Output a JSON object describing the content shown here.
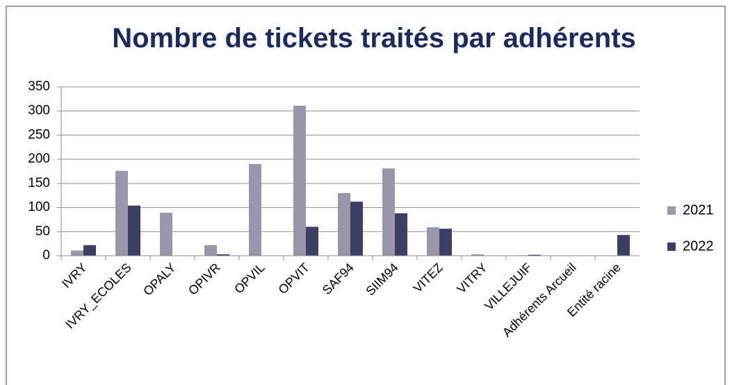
{
  "chart_data": {
    "type": "bar",
    "title": "Nombre de tickets traités par adhérents",
    "categories": [
      "IVRY",
      "IVRY_ECOLES",
      "OPALY",
      "OPIVR",
      "OPVIL",
      "OPVIT",
      "SAF94",
      "SIIM94",
      "VITEZ",
      "VITRY",
      "VILLEJUIF",
      "Adhérents Arcueil",
      "Entité racine"
    ],
    "series": [
      {
        "name": "2021",
        "color": "#9897a9",
        "values": [
          11,
          176,
          89,
          22,
          190,
          311,
          130,
          181,
          59,
          3,
          1,
          0,
          0
        ]
      },
      {
        "name": "2022",
        "color": "#3d3e63",
        "values": [
          22,
          104,
          0,
          3,
          0,
          60,
          112,
          88,
          56,
          0,
          2,
          0,
          43
        ]
      }
    ],
    "ylim": [
      0,
      350
    ],
    "yticks": [
      0,
      50,
      100,
      150,
      200,
      250,
      300,
      350
    ],
    "grid": true,
    "legend": "right"
  }
}
